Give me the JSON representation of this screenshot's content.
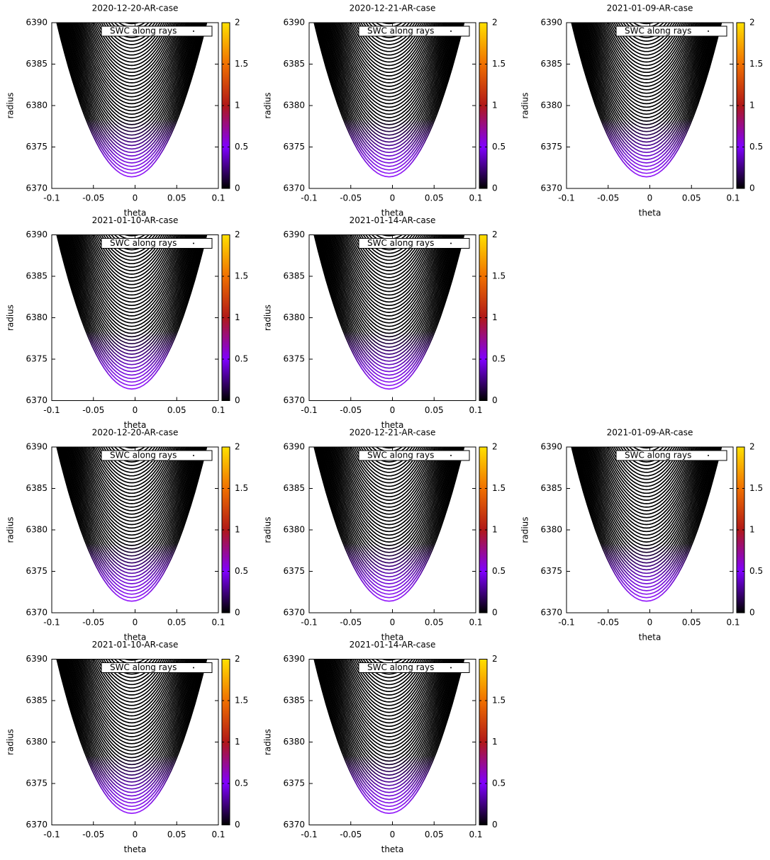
{
  "chart_data": [
    {
      "type": "line",
      "title": "2020-12-20-AR-case",
      "x_label": "theta",
      "y_label": "radius",
      "xlim": [
        -0.1,
        0.1
      ],
      "xticks": [
        -0.1,
        -0.05,
        0,
        0.05,
        0.1
      ],
      "ylim": [
        6370,
        6390
      ],
      "yticks": [
        6370,
        6375,
        6380,
        6385,
        6390
      ],
      "series": [
        {
          "name": "SWC along rays"
        }
      ],
      "clim": [
        0,
        2
      ],
      "cticks": [
        0,
        0.5,
        1,
        1.5,
        2
      ]
    },
    {
      "type": "line",
      "title": "2020-12-21-AR-case",
      "x_label": "theta",
      "y_label": "radius",
      "xlim": [
        -0.1,
        0.1
      ],
      "xticks": [
        -0.1,
        -0.05,
        0,
        0.05,
        0.1
      ],
      "ylim": [
        6370,
        6390
      ],
      "yticks": [
        6370,
        6375,
        6380,
        6385,
        6390
      ],
      "series": [
        {
          "name": "SWC along rays"
        }
      ],
      "clim": [
        0,
        2
      ],
      "cticks": [
        0,
        0.5,
        1,
        1.5,
        2
      ]
    },
    {
      "type": "line",
      "title": "2021-01-09-AR-case",
      "x_label": "theta",
      "y_label": "radius",
      "xlim": [
        -0.1,
        0.1
      ],
      "xticks": [
        -0.1,
        -0.05,
        0,
        0.05,
        0.1
      ],
      "ylim": [
        6370,
        6390
      ],
      "yticks": [
        6370,
        6375,
        6380,
        6385,
        6390
      ],
      "series": [
        {
          "name": "SWC along rays"
        }
      ],
      "clim": [
        0,
        2
      ],
      "cticks": [
        0,
        0.5,
        1,
        1.5,
        2
      ]
    },
    {
      "type": "line",
      "title": "2021-01-10-AR-case",
      "x_label": "theta",
      "y_label": "radius",
      "xlim": [
        -0.1,
        0.1
      ],
      "xticks": [
        -0.1,
        -0.05,
        0,
        0.05,
        0.1
      ],
      "ylim": [
        6370,
        6390
      ],
      "yticks": [
        6370,
        6375,
        6380,
        6385,
        6390
      ],
      "series": [
        {
          "name": "SWC along rays"
        }
      ],
      "clim": [
        0,
        2
      ],
      "cticks": [
        0,
        0.5,
        1,
        1.5,
        2
      ]
    },
    {
      "type": "line",
      "title": "2021-01-14-AR-case",
      "x_label": "theta",
      "y_label": "radius",
      "xlim": [
        -0.1,
        0.1
      ],
      "xticks": [
        -0.1,
        -0.05,
        0,
        0.05,
        0.1
      ],
      "ylim": [
        6370,
        6390
      ],
      "yticks": [
        6370,
        6375,
        6380,
        6385,
        6390
      ],
      "series": [
        {
          "name": "SWC along rays"
        }
      ],
      "clim": [
        0,
        2
      ],
      "cticks": [
        0,
        0.5,
        1,
        1.5,
        2
      ]
    },
    {
      "type": "line",
      "title": "2020-12-20-AR-case",
      "x_label": "theta",
      "y_label": "radius",
      "xlim": [
        -0.1,
        0.1
      ],
      "xticks": [
        -0.1,
        -0.05,
        0,
        0.05,
        0.1
      ],
      "ylim": [
        6370,
        6390
      ],
      "yticks": [
        6370,
        6375,
        6380,
        6385,
        6390
      ],
      "series": [
        {
          "name": "SWC along rays"
        }
      ],
      "clim": [
        0,
        2
      ],
      "cticks": [
        0,
        0.5,
        1,
        1.5,
        2
      ]
    },
    {
      "type": "line",
      "title": "2020-12-21-AR-case",
      "x_label": "theta",
      "y_label": "radius",
      "xlim": [
        -0.1,
        0.1
      ],
      "xticks": [
        -0.1,
        -0.05,
        0,
        0.05,
        0.1
      ],
      "ylim": [
        6370,
        6390
      ],
      "yticks": [
        6370,
        6375,
        6380,
        6385,
        6390
      ],
      "series": [
        {
          "name": "SWC along rays"
        }
      ],
      "clim": [
        0,
        2
      ],
      "cticks": [
        0,
        0.5,
        1,
        1.5,
        2
      ]
    },
    {
      "type": "line",
      "title": "2021-01-09-AR-case",
      "x_label": "theta",
      "y_label": "radius",
      "xlim": [
        -0.1,
        0.1
      ],
      "xticks": [
        -0.1,
        -0.05,
        0,
        0.05,
        0.1
      ],
      "ylim": [
        6370,
        6390
      ],
      "yticks": [
        6370,
        6375,
        6380,
        6385,
        6390
      ],
      "series": [
        {
          "name": "SWC along rays"
        }
      ],
      "clim": [
        0,
        2
      ],
      "cticks": [
        0,
        0.5,
        1,
        1.5,
        2
      ]
    },
    {
      "type": "line",
      "title": "2021-01-10-AR-case",
      "x_label": "theta",
      "y_label": "radius",
      "xlim": [
        -0.1,
        0.1
      ],
      "xticks": [
        -0.1,
        -0.05,
        0,
        0.05,
        0.1
      ],
      "ylim": [
        6370,
        6390
      ],
      "yticks": [
        6370,
        6375,
        6380,
        6385,
        6390
      ],
      "series": [
        {
          "name": "SWC along rays"
        }
      ],
      "clim": [
        0,
        2
      ],
      "cticks": [
        0,
        0.5,
        1,
        1.5,
        2
      ]
    },
    {
      "type": "line",
      "title": "2021-01-14-AR-case",
      "x_label": "theta",
      "y_label": "radius",
      "xlim": [
        -0.1,
        0.1
      ],
      "xticks": [
        -0.1,
        -0.05,
        0,
        0.05,
        0.1
      ],
      "ylim": [
        6370,
        6390
      ],
      "yticks": [
        6370,
        6375,
        6380,
        6385,
        6390
      ],
      "series": [
        {
          "name": "SWC along rays"
        }
      ],
      "clim": [
        0,
        2
      ],
      "cticks": [
        0,
        0.5,
        1,
        1.5,
        2
      ]
    }
  ]
}
